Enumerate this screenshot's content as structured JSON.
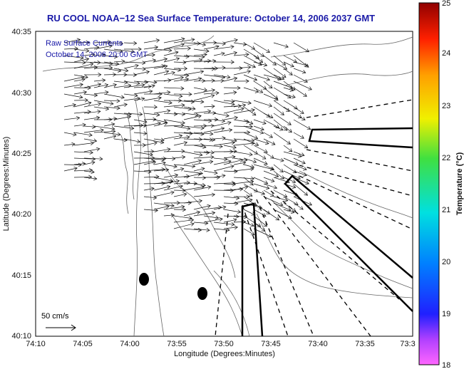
{
  "title": "RU COOL  NOAA−12  Sea Surface Temperature:  October 14, 2006 2037 GMT",
  "annotation": {
    "line1": "Raw Surface Currents",
    "line2": "October 14, 2006 20:00 GMT"
  },
  "scale_label": "50 cm/s",
  "axes": {
    "xlabel": "Longitude (Degrees:Minutes)",
    "ylabel": "Latitude (Degrees:Minutes)",
    "xticks": [
      "74:10",
      "74:05",
      "74:00",
      "73:55",
      "73:50",
      "73:45",
      "73:40",
      "73:35",
      "73:3"
    ],
    "yticks": [
      "40:35",
      "40:30",
      "40:25",
      "40:20",
      "40:15",
      "40:10"
    ]
  },
  "colorbar": {
    "label": "Temperature (°C)",
    "ticks": [
      "25",
      "24",
      "23",
      "22",
      "21",
      "20",
      "19",
      "18"
    ]
  }
}
